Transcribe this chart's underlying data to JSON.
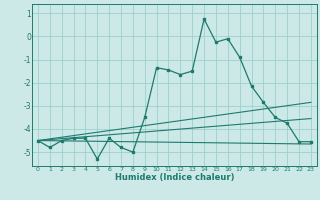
{
  "title": "",
  "xlabel": "Humidex (Indice chaleur)",
  "xlim": [
    -0.5,
    23.5
  ],
  "ylim": [
    -5.6,
    1.4
  ],
  "yticks": [
    1,
    0,
    -1,
    -2,
    -3,
    -4,
    -5
  ],
  "xticks": [
    0,
    1,
    2,
    3,
    4,
    5,
    6,
    7,
    8,
    9,
    10,
    11,
    12,
    13,
    14,
    15,
    16,
    17,
    18,
    19,
    20,
    21,
    22,
    23
  ],
  "background_color": "#cce9e7",
  "grid_color": "#9dcfcc",
  "line_color": "#1e7a6e",
  "main_curve_x": [
    0,
    1,
    2,
    3,
    4,
    5,
    6,
    7,
    8,
    9,
    10,
    11,
    12,
    13,
    14,
    15,
    16,
    17,
    18,
    19,
    20,
    21,
    22,
    23
  ],
  "main_curve_y": [
    -4.5,
    -4.8,
    -4.5,
    -4.4,
    -4.4,
    -5.3,
    -4.4,
    -4.8,
    -5.0,
    -3.5,
    -1.35,
    -1.45,
    -1.65,
    -1.5,
    0.75,
    -0.25,
    -0.1,
    -0.9,
    -2.15,
    -2.85,
    -3.5,
    -3.75,
    -4.55,
    -4.55
  ],
  "reg_line1_x": [
    0,
    23
  ],
  "reg_line1_y": [
    -4.5,
    -4.65
  ],
  "reg_line2_x": [
    0,
    23
  ],
  "reg_line2_y": [
    -4.5,
    -2.85
  ],
  "reg_line3_x": [
    0,
    23
  ],
  "reg_line3_y": [
    -4.5,
    -3.55
  ]
}
